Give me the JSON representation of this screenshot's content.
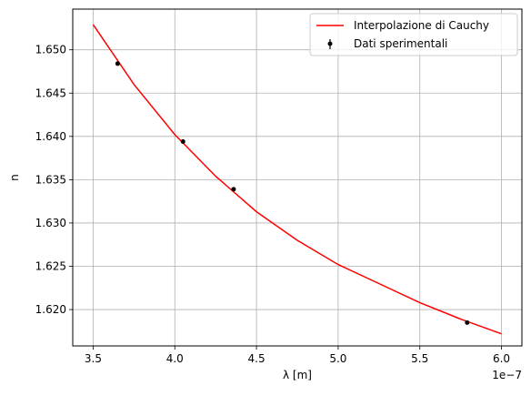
{
  "chart_data": {
    "type": "line",
    "xlabel": "λ [m]",
    "ylabel": "n",
    "x_offset_label": "1e−7",
    "xlim": [
      3.375,
      6.125
    ],
    "ylim": [
      1.6158,
      1.6547
    ],
    "x_ticks": [
      3.5,
      4.0,
      4.5,
      5.0,
      5.5,
      6.0
    ],
    "x_tick_labels": [
      "3.5",
      "4.0",
      "4.5",
      "5.0",
      "5.5",
      "6.0"
    ],
    "y_ticks": [
      1.62,
      1.625,
      1.63,
      1.635,
      1.64,
      1.645,
      1.65
    ],
    "y_tick_labels": [
      "1.620",
      "1.625",
      "1.630",
      "1.635",
      "1.640",
      "1.645",
      "1.650"
    ],
    "grid": true,
    "legend_position": "top-right",
    "series": [
      {
        "name": "Interpolazione di Cauchy",
        "kind": "line",
        "color": "#ff0000",
        "x": [
          3.5,
          3.75,
          4.0,
          4.25,
          4.5,
          4.75,
          5.0,
          5.25,
          5.5,
          5.75,
          6.0
        ],
        "y": [
          1.6529,
          1.646,
          1.6402,
          1.6354,
          1.6313,
          1.628,
          1.6252,
          1.623,
          1.6208,
          1.6189,
          1.6172
        ]
      },
      {
        "name": "Dati sperimentali",
        "kind": "errorbar",
        "color": "#000000",
        "x": [
          3.65,
          4.05,
          4.36,
          5.79
        ],
        "y": [
          1.6484,
          1.6394,
          1.6339,
          1.6185
        ]
      }
    ]
  }
}
